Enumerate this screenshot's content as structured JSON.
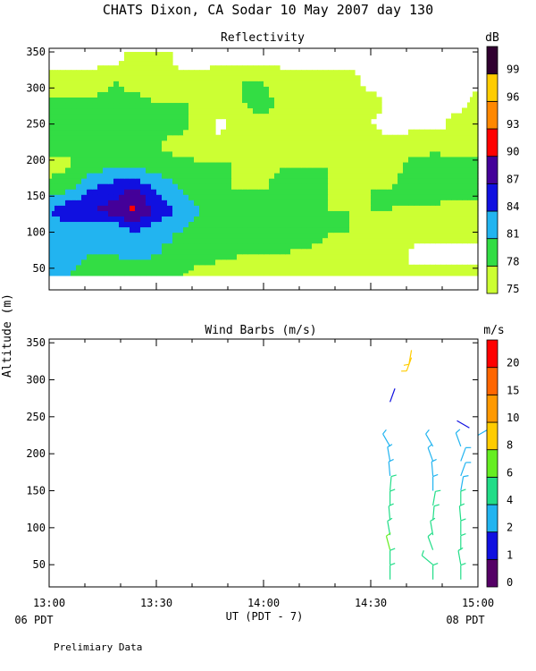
{
  "header": {
    "title": "CHATS Dixon, CA  Sodar  10 May 2007  day 130"
  },
  "panels": {
    "reflectivity": {
      "title": "Reflectivity",
      "unit": "dB"
    },
    "wind": {
      "title": "Wind Barbs (m/s)",
      "unit": "m/s"
    }
  },
  "axes": {
    "ylabel": "Altitude (m)",
    "xlabel": "UT  (PDT - 7)",
    "left_local": "06 PDT",
    "right_local": "08 PDT"
  },
  "footer": {
    "note": "Prelimiary Data"
  },
  "chart_data": [
    {
      "type": "heatmap",
      "title": "Reflectivity",
      "colorbar_label": "dB",
      "colorbar_ticks": [
        "75",
        "78",
        "81",
        "84",
        "87",
        "90",
        "93",
        "96",
        "99"
      ],
      "colorbar_colors": [
        "#ccff33",
        "#33dd44",
        "#22b4f0",
        "#1010e0",
        "#440099",
        "#ff0000",
        "#ff8800",
        "#ffcc00",
        "#300030"
      ],
      "xticks": [
        "13:00",
        "13:30",
        "14:00",
        "14:30",
        "15:00"
      ],
      "xlim_hours": [
        13.0,
        15.0
      ],
      "yticks": [
        50,
        100,
        150,
        200,
        250,
        300,
        350
      ],
      "ylim": [
        20,
        355
      ],
      "data_ylim": [
        40,
        350
      ],
      "x_hours": [
        13.0,
        13.1,
        13.2,
        13.3,
        13.4,
        13.5,
        13.6,
        13.7,
        13.8,
        13.9,
        14.0,
        14.1,
        14.2,
        14.3,
        14.4,
        14.5,
        14.6,
        14.7,
        14.8,
        14.9,
        15.0
      ],
      "y": [
        40,
        70,
        100,
        130,
        160,
        190,
        220,
        250,
        280,
        310,
        340
      ],
      "levels": [
        [
          81,
          81,
          79,
          79,
          79,
          78,
          78,
          77,
          76,
          76,
          76,
          76,
          76,
          76,
          76,
          76,
          76,
          76,
          76,
          76,
          76
        ],
        [
          83,
          82,
          81,
          81,
          82,
          81,
          80,
          79,
          79,
          78,
          78,
          78,
          77,
          77,
          77,
          77,
          77,
          74,
          74,
          74,
          74
        ],
        [
          82,
          81,
          82,
          81,
          84,
          82,
          81,
          79,
          80,
          80,
          79,
          79,
          80,
          78,
          78,
          77,
          77,
          76,
          76,
          76,
          76
        ],
        [
          84,
          87,
          87,
          88,
          91,
          86,
          84,
          81,
          81,
          80,
          79,
          79,
          78,
          78,
          78,
          78,
          78,
          77,
          77,
          76,
          76
        ],
        [
          79,
          81,
          84,
          86,
          87,
          84,
          81,
          79,
          78,
          78,
          78,
          79,
          78,
          78,
          77,
          78,
          78,
          80,
          80,
          80,
          80
        ],
        [
          77,
          78,
          80,
          81,
          81,
          80,
          79,
          79,
          79,
          77,
          77,
          78,
          78,
          78,
          77,
          77,
          77,
          79,
          80,
          80,
          80
        ],
        [
          79,
          78,
          79,
          79,
          78,
          78,
          77,
          76,
          76,
          77,
          77,
          77,
          76,
          77,
          77,
          76,
          76,
          77,
          77,
          76,
          76
        ],
        [
          81,
          79,
          79,
          78,
          78,
          79,
          79,
          77,
          74,
          77,
          77,
          77,
          77,
          76,
          76,
          75,
          74,
          74,
          74,
          76,
          76
        ],
        [
          79,
          79,
          79,
          79,
          79,
          78,
          78,
          78,
          78,
          78,
          79,
          77,
          77,
          77,
          76,
          76,
          74,
          74,
          74,
          74,
          76
        ],
        [
          76,
          76,
          76,
          78,
          77,
          76,
          76,
          76,
          77,
          78,
          78,
          76,
          76,
          76,
          76,
          74,
          74,
          74,
          74,
          74,
          74
        ],
        [
          74,
          74,
          74,
          74,
          76,
          77,
          74,
          74,
          74,
          74,
          74,
          74,
          74,
          74,
          74,
          74,
          74,
          74,
          74,
          74,
          74
        ]
      ]
    },
    {
      "type": "scatter",
      "title": "Wind Barbs (m/s)",
      "colorbar_label": "m/s",
      "colorbar_ticks": [
        "0",
        "1",
        "2",
        "4",
        "6",
        "8",
        "10",
        "15",
        "20"
      ],
      "colorbar_colors": [
        "#550066",
        "#1010e0",
        "#22b4f0",
        "#22dd88",
        "#66ee22",
        "#ffcc00",
        "#ff9900",
        "#ff6600",
        "#ff0000"
      ],
      "xticks": [
        "13:00",
        "13:30",
        "14:00",
        "14:30",
        "15:00"
      ],
      "xlim_hours": [
        13.0,
        15.0
      ],
      "yticks": [
        50,
        100,
        150,
        200,
        250,
        300,
        350
      ],
      "ylim": [
        20,
        355
      ],
      "barbs": [
        {
          "t": 14.69,
          "alt": 330,
          "spd": 9,
          "dir": 200
        },
        {
          "t": 14.69,
          "alt": 340,
          "spd": 9,
          "dir": 190
        },
        {
          "t": 14.59,
          "alt": 270,
          "spd": 1,
          "dir": 20
        },
        {
          "t": 14.96,
          "alt": 235,
          "spd": 1,
          "dir": 300
        },
        {
          "t": 14.59,
          "alt": 210,
          "spd": 3,
          "dir": 330
        },
        {
          "t": 14.59,
          "alt": 190,
          "spd": 3,
          "dir": 350
        },
        {
          "t": 14.59,
          "alt": 170,
          "spd": 3,
          "dir": 355
        },
        {
          "t": 14.59,
          "alt": 150,
          "spd": 4,
          "dir": 5
        },
        {
          "t": 14.59,
          "alt": 130,
          "spd": 4,
          "dir": 0
        },
        {
          "t": 14.59,
          "alt": 110,
          "spd": 5,
          "dir": 355
        },
        {
          "t": 14.59,
          "alt": 90,
          "spd": 5,
          "dir": 350
        },
        {
          "t": 14.59,
          "alt": 70,
          "spd": 6,
          "dir": 345
        },
        {
          "t": 14.59,
          "alt": 50,
          "spd": 4,
          "dir": 0
        },
        {
          "t": 14.59,
          "alt": 30,
          "spd": 4,
          "dir": 0
        },
        {
          "t": 14.79,
          "alt": 210,
          "spd": 2,
          "dir": 330
        },
        {
          "t": 14.79,
          "alt": 190,
          "spd": 3,
          "dir": 340
        },
        {
          "t": 14.79,
          "alt": 170,
          "spd": 3,
          "dir": 355
        },
        {
          "t": 14.79,
          "alt": 150,
          "spd": 3,
          "dir": 0
        },
        {
          "t": 14.79,
          "alt": 130,
          "spd": 4,
          "dir": 10
        },
        {
          "t": 14.79,
          "alt": 110,
          "spd": 4,
          "dir": 5
        },
        {
          "t": 14.79,
          "alt": 90,
          "spd": 4,
          "dir": 350
        },
        {
          "t": 14.79,
          "alt": 70,
          "spd": 4,
          "dir": 340
        },
        {
          "t": 14.79,
          "alt": 50,
          "spd": 4,
          "dir": 310
        },
        {
          "t": 14.79,
          "alt": 30,
          "spd": 4,
          "dir": 0
        },
        {
          "t": 14.92,
          "alt": 210,
          "spd": 3,
          "dir": 340
        },
        {
          "t": 14.92,
          "alt": 190,
          "spd": 3,
          "dir": 20
        },
        {
          "t": 14.92,
          "alt": 170,
          "spd": 3,
          "dir": 20
        },
        {
          "t": 14.92,
          "alt": 150,
          "spd": 3,
          "dir": 10
        },
        {
          "t": 14.92,
          "alt": 130,
          "spd": 4,
          "dir": 0
        },
        {
          "t": 14.92,
          "alt": 110,
          "spd": 4,
          "dir": 355
        },
        {
          "t": 14.92,
          "alt": 90,
          "spd": 4,
          "dir": 0
        },
        {
          "t": 14.92,
          "alt": 70,
          "spd": 4,
          "dir": 0
        },
        {
          "t": 14.92,
          "alt": 50,
          "spd": 4,
          "dir": 350
        },
        {
          "t": 14.92,
          "alt": 30,
          "spd": 4,
          "dir": 0
        },
        {
          "t": 15.0,
          "alt": 225,
          "spd": 2,
          "dir": 60
        }
      ]
    }
  ]
}
